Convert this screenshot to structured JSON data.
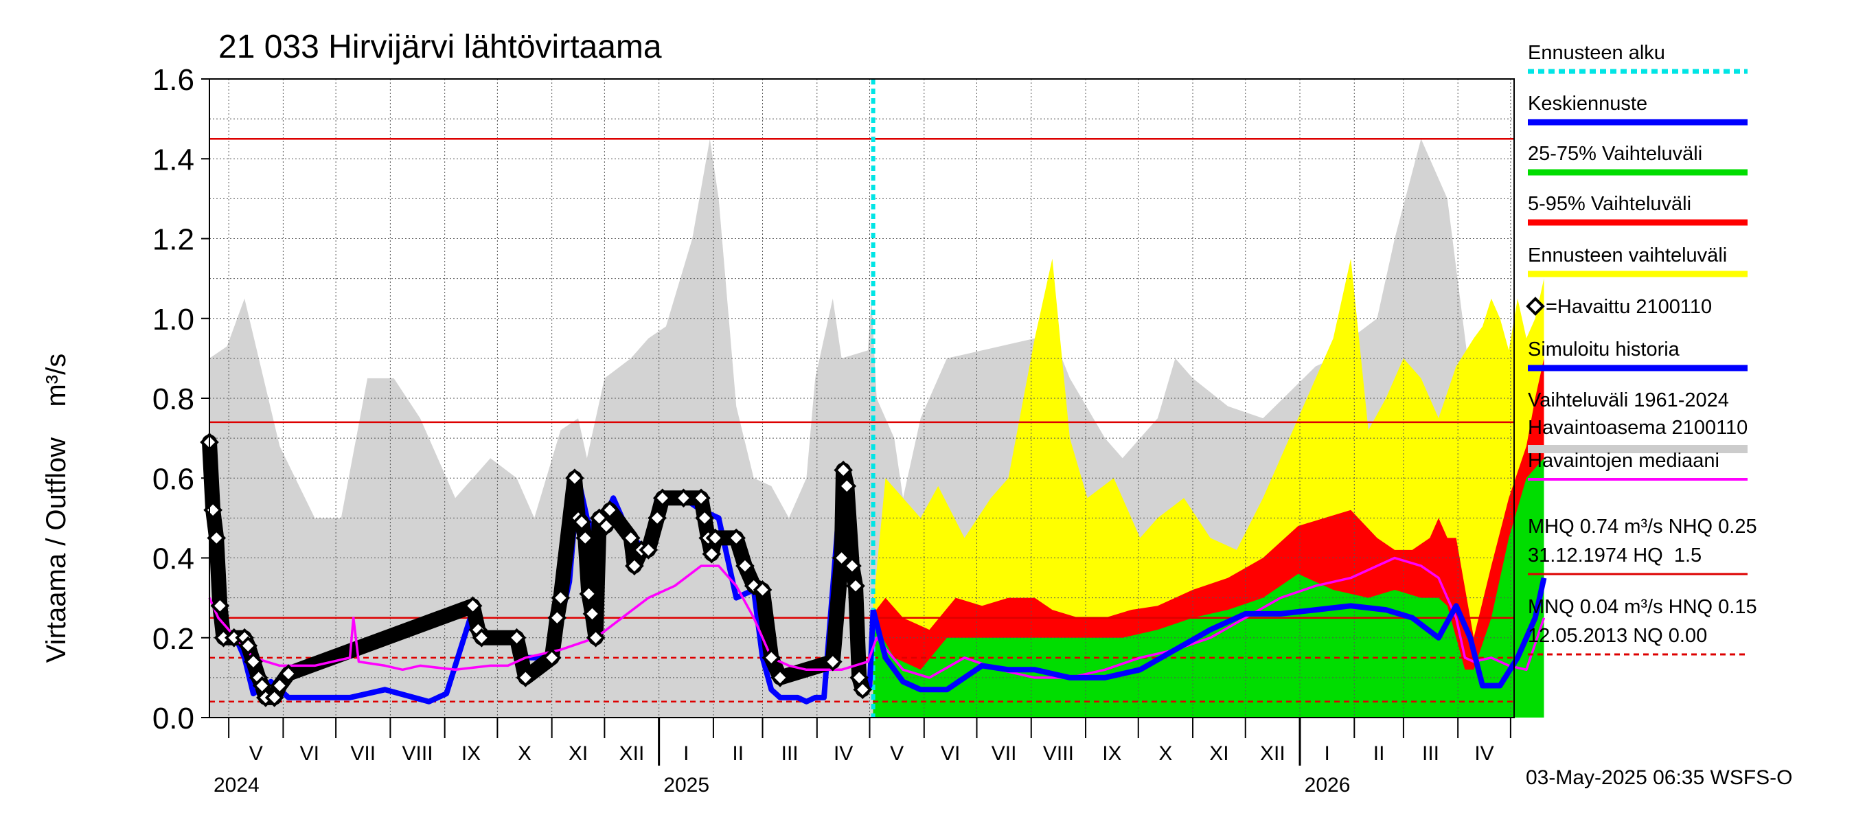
{
  "chart_data": {
    "type": "area",
    "title": "21 033 Hirvijärvi lähtövirtaama",
    "ylabel": "Virtaama / Outflow    m³/s",
    "ylim": [
      0,
      1.6
    ],
    "y_ticks": [
      "0.0",
      "0.2",
      "0.4",
      "0.6",
      "0.8",
      "1.0",
      "1.2",
      "1.4",
      "1.6"
    ],
    "x_start": "2024-04-20",
    "x_end": "2026-05-03",
    "forecast_start": "2025-05-03",
    "months": [
      "V",
      "VI",
      "VII",
      "VIII",
      "IX",
      "X",
      "XI",
      "XII",
      "I",
      "II",
      "III",
      "IV",
      "V",
      "VI",
      "VII",
      "VIII",
      "IX",
      "X",
      "XI",
      "XII",
      "I",
      "II",
      "III",
      "IV"
    ],
    "years": [
      "2024",
      "2025",
      "2026"
    ],
    "reference_lines": [
      {
        "name": "HQ",
        "value": 1.45,
        "style": "solid"
      },
      {
        "name": "MHQ",
        "value": 0.74,
        "style": "solid"
      },
      {
        "name": "NHQ",
        "value": 0.25,
        "style": "solid"
      },
      {
        "name": "HNQ",
        "value": 0.15,
        "style": "dashed"
      },
      {
        "name": "MNQ",
        "value": 0.04,
        "style": "dashed"
      }
    ],
    "series": [
      {
        "name": "Vaihteluväli 1961-2024 (max)",
        "unit": "m³/s",
        "x_days": [
          0,
          10,
          20,
          40,
          60,
          75,
          90,
          105,
          120,
          140,
          160,
          175,
          185,
          200,
          210,
          215,
          225,
          240,
          250,
          260,
          275,
          285,
          290,
          300,
          310,
          320,
          330,
          340,
          345,
          355,
          360,
          375,
          377,
          380,
          385,
          390,
          395,
          405,
          420,
          440,
          470,
          480,
          490,
          510,
          520,
          540,
          550,
          560,
          580,
          600,
          630,
          640,
          650,
          665,
          675,
          690,
          705,
          720,
          735,
          742,
          745,
          747,
          755,
          760
        ],
        "values": [
          0.9,
          0.93,
          1.05,
          0.68,
          0.5,
          0.5,
          0.85,
          0.85,
          0.75,
          0.55,
          0.65,
          0.6,
          0.5,
          0.72,
          0.75,
          0.65,
          0.85,
          0.9,
          0.95,
          0.98,
          1.2,
          1.45,
          1.3,
          0.78,
          0.6,
          0.58,
          0.5,
          0.6,
          0.85,
          1.05,
          0.9,
          0.92,
          1.05,
          0.8,
          0.75,
          0.7,
          0.55,
          0.75,
          0.9,
          0.92,
          0.95,
          0.96,
          0.85,
          0.7,
          0.65,
          0.75,
          0.9,
          0.85,
          0.78,
          0.75,
          0.88,
          0.9,
          0.95,
          1.0,
          1.2,
          1.45,
          1.3,
          0.78,
          0.6,
          0.5,
          0.85,
          0.9,
          0.85,
          0.9
        ]
      },
      {
        "name": "Ennusteen vaihteluväli (max)",
        "unit": "m³/s",
        "x_days": [
          378,
          385,
          395,
          405,
          415,
          430,
          445,
          455,
          470,
          480,
          490,
          500,
          515,
          530,
          540,
          555,
          570,
          585,
          600,
          615,
          630,
          640,
          650,
          660,
          670,
          680,
          690,
          700,
          710,
          720,
          725,
          730,
          735,
          740,
          745,
          750,
          755,
          760
        ],
        "values": [
          0.28,
          0.6,
          0.55,
          0.5,
          0.58,
          0.45,
          0.55,
          0.6,
          0.95,
          1.15,
          0.7,
          0.55,
          0.6,
          0.45,
          0.5,
          0.55,
          0.45,
          0.42,
          0.55,
          0.7,
          0.85,
          0.95,
          1.15,
          0.72,
          0.8,
          0.9,
          0.85,
          0.75,
          0.88,
          0.95,
          0.98,
          1.05,
          1.0,
          0.92,
          1.05,
          0.95,
          1.0,
          1.1
        ]
      },
      {
        "name": "5-95% Vaihteluväli (max)",
        "unit": "m³/s",
        "x_days": [
          378,
          385,
          395,
          410,
          425,
          440,
          455,
          470,
          480,
          495,
          510,
          525,
          540,
          560,
          580,
          600,
          620,
          635,
          650,
          665,
          675,
          685,
          695,
          700,
          705,
          710,
          720,
          730,
          740,
          750,
          755,
          760
        ],
        "values": [
          0.26,
          0.3,
          0.25,
          0.22,
          0.3,
          0.28,
          0.3,
          0.3,
          0.27,
          0.25,
          0.25,
          0.27,
          0.28,
          0.32,
          0.35,
          0.4,
          0.48,
          0.5,
          0.52,
          0.45,
          0.42,
          0.42,
          0.45,
          0.5,
          0.45,
          0.45,
          0.2,
          0.38,
          0.55,
          0.68,
          0.8,
          0.9
        ]
      },
      {
        "name": "25-75% Vaihteluväli (max)",
        "unit": "m³/s",
        "x_days": [
          378,
          390,
          405,
          420,
          440,
          460,
          480,
          500,
          520,
          540,
          560,
          580,
          600,
          620,
          640,
          660,
          675,
          690,
          700,
          705,
          715,
          720,
          730,
          740,
          750,
          760
        ],
        "values": [
          0.24,
          0.15,
          0.12,
          0.2,
          0.2,
          0.2,
          0.2,
          0.2,
          0.2,
          0.22,
          0.25,
          0.27,
          0.3,
          0.36,
          0.32,
          0.3,
          0.32,
          0.3,
          0.3,
          0.28,
          0.12,
          0.12,
          0.25,
          0.45,
          0.6,
          0.65
        ]
      },
      {
        "name": "Keskiennuste",
        "unit": "m³/s",
        "x_days": [
          378,
          385,
          395,
          405,
          420,
          440,
          455,
          470,
          490,
          510,
          530,
          550,
          570,
          590,
          610,
          630,
          650,
          670,
          685,
          700,
          710,
          718,
          725,
          735,
          745,
          755,
          760
        ],
        "values": [
          0.27,
          0.15,
          0.09,
          0.07,
          0.07,
          0.13,
          0.12,
          0.12,
          0.1,
          0.1,
          0.12,
          0.17,
          0.22,
          0.26,
          0.26,
          0.27,
          0.28,
          0.27,
          0.25,
          0.2,
          0.28,
          0.2,
          0.08,
          0.08,
          0.15,
          0.25,
          0.35
        ]
      },
      {
        "name": "Simuloitu historia",
        "unit": "m³/s",
        "x_days": [
          0,
          2,
          4,
          6,
          8,
          15,
          20,
          25,
          35,
          45,
          60,
          80,
          100,
          125,
          135,
          150,
          155,
          160,
          170,
          180,
          195,
          205,
          210,
          215,
          220,
          230,
          240,
          250,
          255,
          260,
          270,
          280,
          290,
          300,
          310,
          315,
          320,
          325,
          330,
          335,
          340,
          345,
          350,
          360,
          368,
          370,
          373,
          376,
          378
        ],
        "values": [
          0.7,
          0.52,
          0.45,
          0.28,
          0.2,
          0.2,
          0.15,
          0.06,
          0.09,
          0.05,
          0.05,
          0.05,
          0.07,
          0.04,
          0.06,
          0.27,
          0.2,
          0.2,
          0.2,
          0.15,
          0.15,
          0.34,
          0.6,
          0.5,
          0.45,
          0.55,
          0.45,
          0.42,
          0.55,
          0.55,
          0.55,
          0.52,
          0.5,
          0.3,
          0.32,
          0.15,
          0.07,
          0.05,
          0.05,
          0.05,
          0.04,
          0.05,
          0.05,
          0.6,
          0.3,
          0.08,
          0.06,
          0.08,
          0.27
        ]
      },
      {
        "name": "Havaintojen mediaani",
        "unit": "m³/s",
        "x_days": [
          0,
          5,
          15,
          25,
          40,
          60,
          80,
          82,
          85,
          100,
          110,
          120,
          140,
          160,
          170,
          180,
          200,
          220,
          235,
          250,
          265,
          280,
          290,
          300,
          310,
          320,
          330,
          340,
          350,
          360,
          375,
          380,
          395,
          410,
          430,
          450,
          470,
          490,
          510,
          530,
          550,
          570,
          590,
          610,
          630,
          650,
          665,
          675,
          690,
          700,
          710,
          715,
          720,
          730,
          740,
          750,
          760
        ],
        "values": [
          0.3,
          0.25,
          0.2,
          0.15,
          0.13,
          0.13,
          0.15,
          0.25,
          0.14,
          0.13,
          0.12,
          0.13,
          0.12,
          0.13,
          0.13,
          0.15,
          0.17,
          0.2,
          0.25,
          0.3,
          0.33,
          0.38,
          0.38,
          0.33,
          0.25,
          0.15,
          0.13,
          0.12,
          0.12,
          0.12,
          0.14,
          0.2,
          0.12,
          0.1,
          0.15,
          0.12,
          0.1,
          0.1,
          0.12,
          0.15,
          0.17,
          0.2,
          0.25,
          0.3,
          0.33,
          0.35,
          0.38,
          0.4,
          0.38,
          0.35,
          0.25,
          0.15,
          0.14,
          0.15,
          0.13,
          0.12,
          0.25
        ]
      },
      {
        "name": "Havaittu 2100110",
        "unit": "m³/s",
        "x_days": [
          0,
          2,
          4,
          6,
          8,
          14,
          20,
          22,
          25,
          28,
          30,
          32,
          37,
          40,
          45,
          150,
          153,
          155,
          175,
          180,
          195,
          198,
          200,
          208,
          210,
          212,
          214,
          216,
          218,
          220,
          222,
          226,
          228,
          240,
          242,
          246,
          250,
          255,
          258,
          270,
          280,
          282,
          284,
          286,
          288,
          300,
          305,
          310,
          315,
          320,
          325,
          355,
          360,
          361,
          363,
          366,
          368,
          370,
          372
        ],
        "values": [
          0.69,
          0.52,
          0.45,
          0.28,
          0.2,
          0.2,
          0.2,
          0.18,
          0.14,
          0.1,
          0.08,
          0.05,
          0.05,
          0.08,
          0.11,
          0.28,
          0.22,
          0.2,
          0.2,
          0.1,
          0.15,
          0.25,
          0.3,
          0.6,
          0.5,
          0.49,
          0.45,
          0.31,
          0.26,
          0.2,
          0.5,
          0.48,
          0.52,
          0.45,
          0.38,
          0.42,
          0.42,
          0.5,
          0.55,
          0.55,
          0.55,
          0.5,
          0.45,
          0.41,
          0.45,
          0.45,
          0.38,
          0.33,
          0.32,
          0.15,
          0.1,
          0.14,
          0.4,
          0.62,
          0.58,
          0.38,
          0.33,
          0.1,
          0.07
        ]
      }
    ],
    "legend": [
      {
        "label": "Ennusteen alku",
        "color": "#00e5e5",
        "style": "dotted"
      },
      {
        "label": "Keskiennuste",
        "color": "#0000ff",
        "style": "line"
      },
      {
        "label": "25-75% Vaihteluväli",
        "color": "#00dd00",
        "style": "line"
      },
      {
        "label": "5-95% Vaihteluväli",
        "color": "#ff0000",
        "style": "line"
      },
      {
        "label": "Ennusteen vaihteluväli",
        "color": "#ffff00",
        "style": "line"
      },
      {
        "label": "=Havaittu 2100110",
        "color": "#000000",
        "style": "marker"
      },
      {
        "label": "Simuloitu historia",
        "color": "#0000ff",
        "style": "line"
      },
      {
        "label": "Vaihteluväli 1961-2024",
        "label2": " Havaintoasema 2100110",
        "color": "#cccccc",
        "style": "line"
      },
      {
        "label": "Havaintojen mediaani",
        "color": "#ff00ff",
        "style": "line"
      }
    ],
    "stats": {
      "line1": "MHQ 0.74 m³/s NHQ 0.25",
      "line2": "31.12.1974 HQ  1.5",
      "line3": "MNQ 0.04 m³/s HNQ 0.15",
      "line4": "12.05.2013 NQ 0.00"
    },
    "footer": "03-May-2025 06:35 WSFS-O",
    "colors": {
      "history_band": "#d3d3d3",
      "forecast_band": "#ffff00",
      "band_5_95": "#ff0000",
      "band_25_75": "#00dd00",
      "mean_forecast": "#0000ff",
      "simulated": "#0000ff",
      "median": "#ff00ff",
      "observed": "#000000",
      "forecast_start": "#00e5e5",
      "reference": "#dd0000"
    }
  }
}
